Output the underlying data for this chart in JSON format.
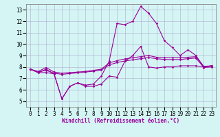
{
  "xlabel": "Windchill (Refroidissement éolien,°C)",
  "x": [
    0,
    1,
    2,
    3,
    4,
    5,
    6,
    7,
    8,
    9,
    10,
    11,
    12,
    13,
    14,
    15,
    16,
    17,
    18,
    19,
    20,
    21,
    22,
    23
  ],
  "line1": [
    7.8,
    7.5,
    7.5,
    7.4,
    5.2,
    6.3,
    6.6,
    6.3,
    6.3,
    6.5,
    7.2,
    7.1,
    8.5,
    9.0,
    9.8,
    8.0,
    7.9,
    8.0,
    8.0,
    8.1,
    8.1,
    8.1,
    8.0,
    8.1
  ],
  "line2": [
    7.8,
    7.5,
    7.8,
    7.4,
    5.2,
    6.3,
    6.6,
    6.4,
    6.5,
    7.2,
    8.5,
    11.8,
    11.7,
    12.0,
    13.3,
    12.7,
    11.8,
    10.3,
    9.7,
    9.0,
    9.5,
    9.0,
    8.0,
    8.1
  ],
  "line3": [
    7.8,
    7.6,
    7.95,
    7.55,
    7.45,
    7.5,
    7.55,
    7.6,
    7.7,
    7.8,
    8.35,
    8.55,
    8.7,
    8.8,
    8.9,
    9.0,
    8.85,
    8.8,
    8.8,
    8.8,
    8.85,
    8.9,
    8.05,
    8.1
  ],
  "line4": [
    7.8,
    7.55,
    7.7,
    7.45,
    7.35,
    7.42,
    7.48,
    7.55,
    7.62,
    7.72,
    8.18,
    8.38,
    8.52,
    8.62,
    8.72,
    8.82,
    8.72,
    8.65,
    8.65,
    8.65,
    8.72,
    8.78,
    7.95,
    8.0
  ],
  "line_color": "#990099",
  "bg_color": "#d5f5f5",
  "grid_color": "#aaaacc",
  "ylim": [
    4.5,
    13.5
  ],
  "yticks": [
    5,
    6,
    7,
    8,
    9,
    10,
    11,
    12,
    13
  ],
  "xlim": [
    -0.5,
    23.5
  ],
  "marker": "D",
  "markersize": 1.8,
  "linewidth": 0.8,
  "tick_fontsize": 5.5,
  "xlabel_fontsize": 5.5
}
